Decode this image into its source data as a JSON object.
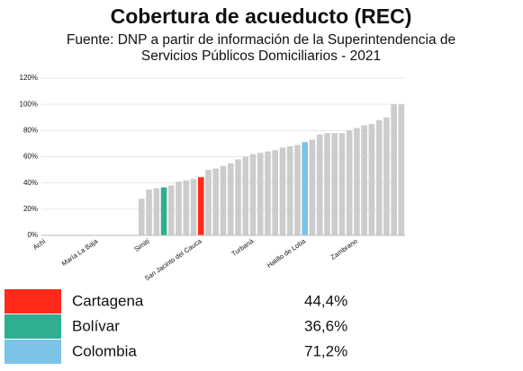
{
  "chart_data": {
    "type": "bar",
    "title": "Cobertura de acueducto (REC)",
    "subtitle": [
      "Fuente: DNP a partir de información de la Superintendencia de",
      "Servicios Públicos Domiciliarios - 2021"
    ],
    "categories": [
      "Achí",
      null,
      null,
      null,
      null,
      null,
      null,
      "María La Baja",
      null,
      null,
      null,
      null,
      null,
      null,
      "Simití",
      null,
      null,
      null,
      null,
      null,
      null,
      "San Jacinto del Cauca",
      null,
      null,
      null,
      null,
      null,
      null,
      "Turbaná",
      null,
      null,
      null,
      null,
      null,
      null,
      "Hatillo de Loba",
      null,
      null,
      null,
      null,
      null,
      null,
      "Zambrano",
      null,
      null,
      null,
      null,
      null,
      null
    ],
    "values": [
      0,
      0,
      0,
      0,
      0,
      0,
      0,
      0,
      0,
      0,
      0,
      0,
      0,
      28,
      35,
      36,
      36.6,
      38,
      41,
      42,
      43,
      44.4,
      50,
      51,
      53,
      55,
      58,
      60,
      62,
      63,
      64,
      65,
      67,
      68,
      69,
      71.2,
      73,
      77,
      78,
      78,
      78,
      80,
      82,
      84,
      85,
      88,
      90,
      100,
      100
    ],
    "colors": [
      "#cccccc",
      "#cccccc",
      "#cccccc",
      "#cccccc",
      "#cccccc",
      "#cccccc",
      "#cccccc",
      "#cccccc",
      "#cccccc",
      "#cccccc",
      "#cccccc",
      "#cccccc",
      "#cccccc",
      "#cccccc",
      "#cccccc",
      "#cccccc",
      "#2fae92",
      "#cccccc",
      "#cccccc",
      "#cccccc",
      "#cccccc",
      "#ff2a1a",
      "#cccccc",
      "#cccccc",
      "#cccccc",
      "#cccccc",
      "#cccccc",
      "#cccccc",
      "#cccccc",
      "#cccccc",
      "#cccccc",
      "#cccccc",
      "#cccccc",
      "#cccccc",
      "#cccccc",
      "#7cc3e8",
      "#cccccc",
      "#cccccc",
      "#cccccc",
      "#cccccc",
      "#cccccc",
      "#cccccc",
      "#cccccc",
      "#cccccc",
      "#cccccc",
      "#cccccc",
      "#cccccc",
      "#cccccc",
      "#cccccc"
    ],
    "ylim": [
      0,
      120
    ],
    "yticks": [
      {
        "value": 0,
        "label": "0%"
      },
      {
        "value": 20,
        "label": "20%"
      },
      {
        "value": 40,
        "label": "40%"
      },
      {
        "value": 60,
        "label": "60%"
      },
      {
        "value": 80,
        "label": "80%"
      },
      {
        "value": 100,
        "label": "100%"
      },
      {
        "value": 120,
        "label": "120%"
      }
    ],
    "grid": true,
    "legend": [
      {
        "name": "Cartagena",
        "color": "#ff2a1a",
        "value": 44.4,
        "value_label": "44,4%"
      },
      {
        "name": "Bolívar",
        "color": "#2fae92",
        "value": 36.6,
        "value_label": "36,6%"
      },
      {
        "name": "Colombia",
        "color": "#7cc3e8",
        "value": 71.2,
        "value_label": "71,2%"
      }
    ]
  }
}
